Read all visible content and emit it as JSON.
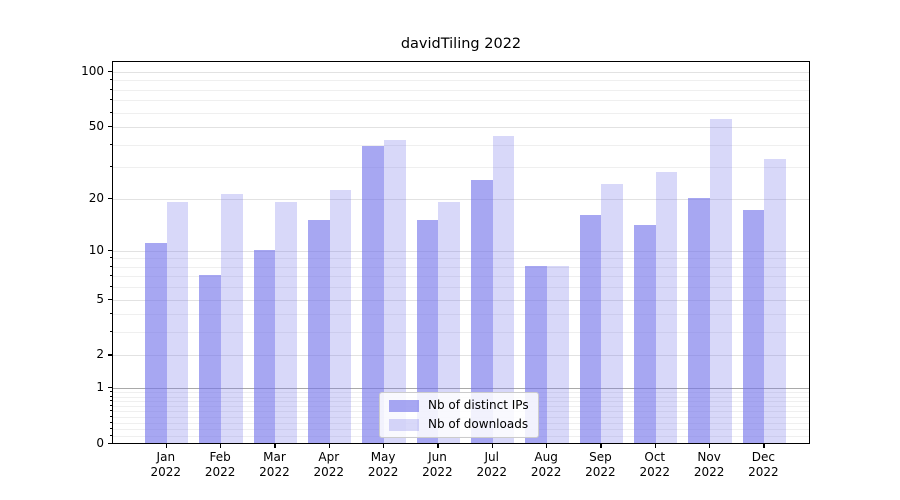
{
  "chart_data": {
    "type": "bar",
    "title": "davidTiling 2022",
    "categories": [
      "Jan 2022",
      "Feb 2022",
      "Mar 2022",
      "Apr 2022",
      "May 2022",
      "Jun 2022",
      "Jul 2022",
      "Aug 2022",
      "Sep 2022",
      "Oct 2022",
      "Nov 2022",
      "Dec 2022"
    ],
    "series": [
      {
        "name": "Nb of distinct IPs",
        "values": [
          11,
          7,
          10,
          15,
          39,
          15,
          25,
          8,
          16,
          14,
          20,
          17
        ],
        "base_color": "#7373eb",
        "alpha": 0.63,
        "rgba": "rgba(115,115,235,0.63)"
      },
      {
        "name": "Nb of downloads",
        "values": [
          19,
          21,
          19,
          22,
          42,
          19,
          44,
          8,
          24,
          28,
          55,
          33
        ],
        "base_color": "#7373eb",
        "alpha": 0.28,
        "rgba": "rgba(115,115,235,0.28)"
      }
    ],
    "y_axis": {
      "scale": "symlog-log1p",
      "ticks": [
        0,
        1,
        2,
        5,
        10,
        20,
        50,
        100
      ],
      "range": [
        0,
        116
      ]
    },
    "x_axis": {
      "tick_label_lines": 2
    },
    "gridlines": {
      "minor": [
        0.1,
        0.2,
        0.3,
        0.4,
        0.5,
        0.6,
        0.7,
        0.8,
        0.9,
        3,
        4,
        6,
        7,
        8,
        9,
        30,
        40,
        60,
        70,
        80,
        90
      ],
      "major": [
        2,
        5,
        10,
        20,
        50,
        100
      ],
      "emphasized": [
        1
      ]
    },
    "legend": {
      "position": "lower center"
    },
    "colors": {
      "background": "#ffffff",
      "axis": "#000000",
      "grid_minor": "#efefef",
      "grid_major": "#e2e2e2",
      "grid_emphasized": "#a9a9a9",
      "bar_dark_rendered": "#a8a8f2",
      "bar_light_rendered": "#d7d7f8"
    }
  }
}
